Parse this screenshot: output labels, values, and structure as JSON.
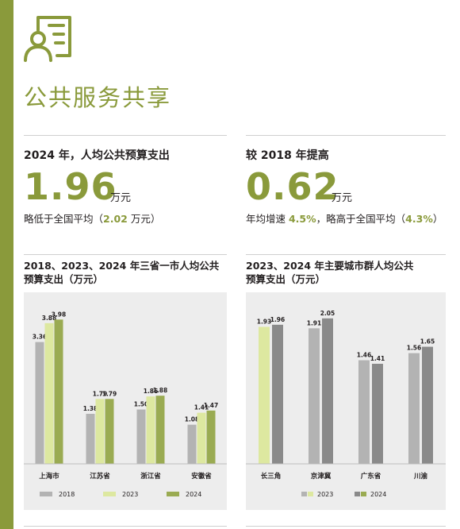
{
  "section": {
    "title": "公共服务共享",
    "icon": "document-user-icon"
  },
  "stats": [
    {
      "label": "2024 年，人均公共预算支出",
      "value": "1.96",
      "unit": "万元",
      "note_parts": [
        "略低于全国平均（",
        "2.02",
        " 万元）"
      ]
    },
    {
      "label": "较 2018 年提高",
      "value": "0.62",
      "unit": "万元",
      "note_parts": [
        "年均增速 ",
        "4.5%",
        "，略高于全国平均（",
        "4.3%",
        "）"
      ]
    }
  ],
  "colors": {
    "accent": "#8a9a3b",
    "bar_2018": "#b3b3b3",
    "bar_2023": "#dde8a0",
    "bar_2024": "#9aab52",
    "bar_2023_right": "#b3b3b3",
    "bar_2024_right": "#8a8a8a",
    "panel": "#ededed"
  },
  "chart_data": [
    {
      "type": "bar",
      "title_lines": [
        "2018、2023、2024 年三省一市人均公共",
        "预算支出（万元）"
      ],
      "categories": [
        "上海市",
        "江苏省",
        "浙江省",
        "安徽省"
      ],
      "series": [
        {
          "name": "2018",
          "values": [
            3.36,
            1.38,
            1.5,
            1.08
          ],
          "labels": [
            "3.36",
            "1.38",
            "1.50",
            "1.08"
          ]
        },
        {
          "name": "2023",
          "values": [
            3.88,
            1.79,
            1.86,
            1.41
          ],
          "labels": [
            "3.88",
            "1.79",
            "1.86",
            "1.41"
          ]
        },
        {
          "name": "2024",
          "values": [
            3.98,
            1.79,
            1.88,
            1.47
          ],
          "labels": [
            "3.98",
            "1.79",
            "1.88",
            "1.47"
          ]
        }
      ],
      "ylim": [
        0,
        4.6
      ],
      "legend": "bottom"
    },
    {
      "type": "bar",
      "title_lines": [
        "2023、2024 年主要城市群人均公共",
        "预算支出（万元）"
      ],
      "categories": [
        "长三角",
        "京津冀",
        "广东省",
        "川渝"
      ],
      "series": [
        {
          "name": "2023",
          "values": [
            1.93,
            1.91,
            1.46,
            1.56
          ],
          "labels": [
            "1.93",
            "1.91",
            "1.46",
            "1.56"
          ]
        },
        {
          "name": "2024",
          "values": [
            1.96,
            2.05,
            1.41,
            1.65
          ],
          "labels": [
            "1.96",
            "2.05",
            "1.41",
            "1.65"
          ]
        }
      ],
      "ylim": [
        0,
        2.35
      ],
      "legend": "bottom"
    }
  ]
}
